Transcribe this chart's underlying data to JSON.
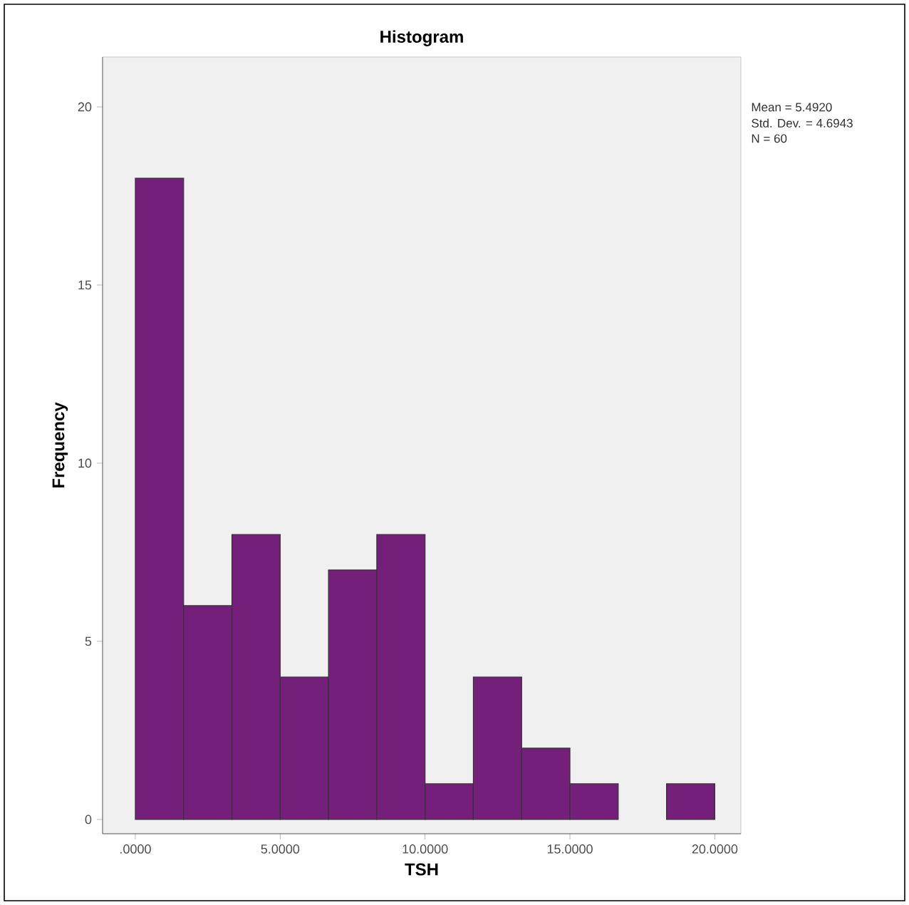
{
  "chart_data": {
    "type": "histogram",
    "title": "Histogram",
    "xlabel": "TSH",
    "ylabel": "Frequency",
    "bins": [
      0,
      1.6667,
      3.3333,
      5,
      6.6667,
      8.3333,
      10,
      11.6667,
      13.3333,
      15,
      16.6667,
      18.3333,
      20
    ],
    "values": [
      18,
      6,
      8,
      4,
      7,
      8,
      1,
      4,
      2,
      1,
      0,
      1
    ],
    "color": "#74207a",
    "xlim": [
      -1.13,
      20.9
    ],
    "ylim": [
      -0.4,
      21.4
    ],
    "xticks": [
      {
        "value": 0,
        "label": ".0000"
      },
      {
        "value": 5,
        "label": "5.0000"
      },
      {
        "value": 10,
        "label": "10.0000"
      },
      {
        "value": 15,
        "label": "15.0000"
      },
      {
        "value": 20,
        "label": "20.0000"
      }
    ],
    "yticks": [
      0,
      5,
      10,
      15,
      20
    ],
    "annotations": [
      "Mean = 5.4920",
      "Std. Dev. = 4.6943",
      "N = 60"
    ]
  }
}
